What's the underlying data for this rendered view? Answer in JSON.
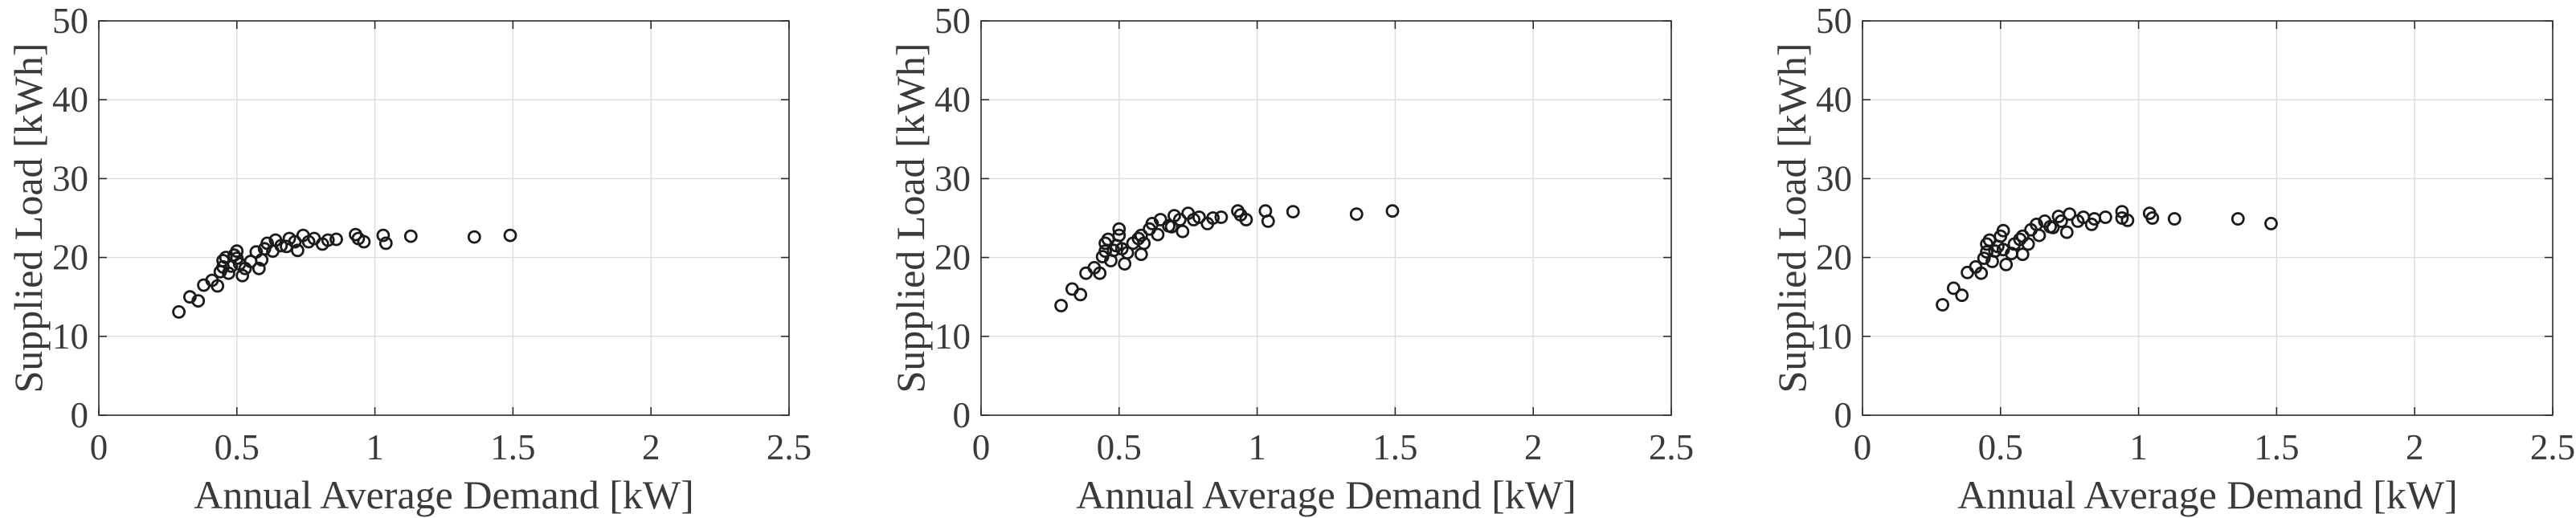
{
  "figure": {
    "background": "#ffffff",
    "text_color": "#3a3a3a",
    "frame_color": "#2b2b2b",
    "grid_color": "#dcdcdc",
    "marker_color": "#1a1a1a"
  },
  "chart_data": [
    {
      "type": "scatter",
      "title": "",
      "xlabel": "Annual Average Demand [kW]",
      "ylabel": "Supplied Load [kWh]",
      "xlim": [
        0,
        2.5
      ],
      "ylim": [
        0,
        50
      ],
      "xticks": [
        0,
        0.5,
        1,
        1.5,
        2,
        2.5
      ],
      "xtick_labels": [
        "0",
        "0.5",
        "1",
        "1.5",
        "2",
        "2.5"
      ],
      "yticks": [
        0,
        10,
        20,
        30,
        40,
        50
      ],
      "ytick_labels": [
        "0",
        "10",
        "20",
        "30",
        "40",
        "50"
      ],
      "grid": true,
      "legend_position": "none",
      "marker": "open-circle",
      "points": [
        [
          0.29,
          13.1
        ],
        [
          0.33,
          15.0
        ],
        [
          0.36,
          14.5
        ],
        [
          0.38,
          16.5
        ],
        [
          0.41,
          17.1
        ],
        [
          0.43,
          16.4
        ],
        [
          0.44,
          18.2
        ],
        [
          0.45,
          19.6
        ],
        [
          0.45,
          18.8
        ],
        [
          0.46,
          20.0
        ],
        [
          0.47,
          18.0
        ],
        [
          0.48,
          18.9
        ],
        [
          0.49,
          20.3
        ],
        [
          0.5,
          20.8
        ],
        [
          0.5,
          19.9
        ],
        [
          0.51,
          19.2
        ],
        [
          0.52,
          17.7
        ],
        [
          0.53,
          18.6
        ],
        [
          0.55,
          19.5
        ],
        [
          0.57,
          20.7
        ],
        [
          0.58,
          18.6
        ],
        [
          0.59,
          19.7
        ],
        [
          0.6,
          21.1
        ],
        [
          0.61,
          21.8
        ],
        [
          0.63,
          20.8
        ],
        [
          0.64,
          22.2
        ],
        [
          0.66,
          21.5
        ],
        [
          0.68,
          21.4
        ],
        [
          0.69,
          22.4
        ],
        [
          0.71,
          22.0
        ],
        [
          0.72,
          20.9
        ],
        [
          0.74,
          22.8
        ],
        [
          0.76,
          22.0
        ],
        [
          0.78,
          22.4
        ],
        [
          0.81,
          21.7
        ],
        [
          0.83,
          22.2
        ],
        [
          0.86,
          22.3
        ],
        [
          0.93,
          22.9
        ],
        [
          0.94,
          22.4
        ],
        [
          0.96,
          22.0
        ],
        [
          1.03,
          22.8
        ],
        [
          1.04,
          21.8
        ],
        [
          1.13,
          22.7
        ],
        [
          1.36,
          22.6
        ],
        [
          1.49,
          22.8
        ]
      ]
    },
    {
      "type": "scatter",
      "title": "",
      "xlabel": "Annual Average Demand [kW]",
      "ylabel": "Supplied Load [kWh]",
      "xlim": [
        0,
        2.5
      ],
      "ylim": [
        0,
        50
      ],
      "xticks": [
        0,
        0.5,
        1,
        1.5,
        2,
        2.5
      ],
      "xtick_labels": [
        "0",
        "0.5",
        "1",
        "1.5",
        "2",
        "2.5"
      ],
      "yticks": [
        0,
        10,
        20,
        30,
        40,
        50
      ],
      "ytick_labels": [
        "0",
        "10",
        "20",
        "30",
        "40",
        "50"
      ],
      "grid": true,
      "legend_position": "none",
      "marker": "open-circle",
      "points": [
        [
          0.29,
          13.9
        ],
        [
          0.33,
          16.0
        ],
        [
          0.36,
          15.3
        ],
        [
          0.38,
          18.0
        ],
        [
          0.41,
          18.7
        ],
        [
          0.43,
          18.0
        ],
        [
          0.44,
          20.1
        ],
        [
          0.45,
          21.8
        ],
        [
          0.45,
          20.8
        ],
        [
          0.46,
          22.3
        ],
        [
          0.47,
          19.6
        ],
        [
          0.48,
          20.9
        ],
        [
          0.49,
          21.5
        ],
        [
          0.5,
          22.8
        ],
        [
          0.5,
          23.6
        ],
        [
          0.51,
          21.1
        ],
        [
          0.52,
          19.2
        ],
        [
          0.53,
          20.6
        ],
        [
          0.55,
          21.8
        ],
        [
          0.57,
          22.4
        ],
        [
          0.58,
          22.8
        ],
        [
          0.58,
          20.4
        ],
        [
          0.59,
          21.8
        ],
        [
          0.61,
          23.6
        ],
        [
          0.62,
          24.3
        ],
        [
          0.64,
          22.9
        ],
        [
          0.65,
          24.8
        ],
        [
          0.68,
          24.0
        ],
        [
          0.69,
          23.9
        ],
        [
          0.7,
          25.3
        ],
        [
          0.72,
          24.8
        ],
        [
          0.73,
          23.3
        ],
        [
          0.75,
          25.6
        ],
        [
          0.77,
          24.8
        ],
        [
          0.79,
          25.1
        ],
        [
          0.82,
          24.3
        ],
        [
          0.84,
          25.0
        ],
        [
          0.87,
          25.1
        ],
        [
          0.93,
          25.9
        ],
        [
          0.94,
          25.4
        ],
        [
          0.96,
          24.8
        ],
        [
          1.03,
          25.9
        ],
        [
          1.04,
          24.6
        ],
        [
          1.13,
          25.8
        ],
        [
          1.36,
          25.5
        ],
        [
          1.49,
          25.9
        ]
      ]
    },
    {
      "type": "scatter",
      "title": "",
      "xlabel": "Annual Average Demand [kW]",
      "ylabel": "Supplied Load [kWh]",
      "xlim": [
        0,
        2.5
      ],
      "ylim": [
        0,
        50
      ],
      "xticks": [
        0,
        0.5,
        1,
        1.5,
        2,
        2.5
      ],
      "xtick_labels": [
        "0",
        "0.5",
        "1",
        "1.5",
        "2",
        "2.5"
      ],
      "yticks": [
        0,
        10,
        20,
        30,
        40,
        50
      ],
      "ytick_labels": [
        "0",
        "10",
        "20",
        "30",
        "40",
        "50"
      ],
      "grid": true,
      "legend_position": "none",
      "marker": "open-circle",
      "points": [
        [
          0.29,
          14.0
        ],
        [
          0.33,
          16.1
        ],
        [
          0.36,
          15.2
        ],
        [
          0.38,
          18.1
        ],
        [
          0.41,
          18.8
        ],
        [
          0.43,
          18.0
        ],
        [
          0.44,
          19.9
        ],
        [
          0.45,
          21.7
        ],
        [
          0.45,
          20.7
        ],
        [
          0.46,
          22.2
        ],
        [
          0.47,
          19.5
        ],
        [
          0.48,
          20.8
        ],
        [
          0.49,
          21.4
        ],
        [
          0.5,
          22.7
        ],
        [
          0.51,
          23.4
        ],
        [
          0.51,
          21.0
        ],
        [
          0.52,
          19.1
        ],
        [
          0.54,
          20.5
        ],
        [
          0.55,
          21.7
        ],
        [
          0.57,
          22.3
        ],
        [
          0.58,
          22.7
        ],
        [
          0.58,
          20.4
        ],
        [
          0.6,
          21.7
        ],
        [
          0.61,
          23.5
        ],
        [
          0.63,
          24.2
        ],
        [
          0.64,
          22.8
        ],
        [
          0.66,
          24.6
        ],
        [
          0.68,
          23.9
        ],
        [
          0.69,
          23.8
        ],
        [
          0.71,
          25.2
        ],
        [
          0.72,
          24.6
        ],
        [
          0.74,
          23.2
        ],
        [
          0.75,
          25.5
        ],
        [
          0.78,
          24.6
        ],
        [
          0.8,
          25.1
        ],
        [
          0.83,
          24.2
        ],
        [
          0.84,
          24.9
        ],
        [
          0.88,
          25.1
        ],
        [
          0.94,
          25.8
        ],
        [
          0.94,
          25.0
        ],
        [
          0.96,
          24.7
        ],
        [
          1.04,
          25.6
        ],
        [
          1.05,
          25.0
        ],
        [
          1.13,
          24.9
        ],
        [
          1.36,
          24.9
        ],
        [
          1.48,
          24.3
        ]
      ]
    }
  ]
}
